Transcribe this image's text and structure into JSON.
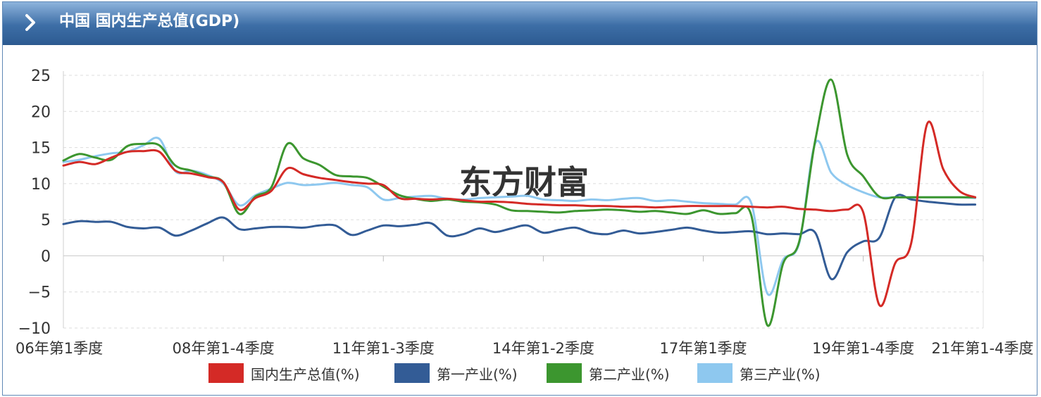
{
  "header": {
    "title": "中国 国内生产总值(GDP)",
    "icon": "chevron-right-icon"
  },
  "chart_data": {
    "type": "line",
    "title": "",
    "xlabel": "",
    "ylabel": "",
    "ylim": [
      -10,
      25
    ],
    "yticks": [
      25,
      20,
      15,
      10,
      5,
      0,
      -5,
      -10
    ],
    "grid": true,
    "legend_position": "bottom",
    "x_tick_labels": [
      "06年第1季度",
      "08年第1-4季度",
      "11年第1-3季度",
      "14年第1-2季度",
      "17年第1季度",
      "19年第1-4季度",
      "21年第1-4季度"
    ],
    "x_tick_positions": [
      0,
      10,
      20,
      30,
      40,
      50,
      57.5
    ],
    "x": [
      0,
      1,
      2,
      3,
      4,
      5,
      6,
      7,
      8,
      9,
      10,
      11,
      12,
      13,
      14,
      15,
      16,
      17,
      18,
      19,
      20,
      21,
      22,
      23,
      24,
      25,
      26,
      27,
      28,
      29,
      30,
      31,
      32,
      33,
      34,
      35,
      36,
      37,
      38,
      39,
      40,
      41,
      42,
      43,
      44,
      45,
      46,
      47,
      48,
      49,
      50,
      51,
      52,
      53,
      54,
      55,
      56,
      57
    ],
    "series": [
      {
        "name": "国内生产总值(%)",
        "color": "#d42a26",
        "values": [
          12.5,
          13.0,
          12.7,
          13.6,
          14.4,
          14.5,
          14.4,
          11.8,
          11.4,
          10.9,
          10.2,
          6.4,
          8.0,
          9.0,
          12.1,
          11.3,
          10.8,
          10.5,
          10.2,
          10.0,
          9.8,
          8.0,
          7.9,
          7.8,
          7.9,
          7.7,
          7.5,
          7.5,
          7.4,
          7.2,
          7.1,
          7.0,
          7.0,
          6.9,
          6.9,
          6.8,
          6.8,
          6.7,
          6.8,
          6.9,
          6.9,
          6.9,
          6.9,
          6.8,
          6.7,
          6.8,
          6.5,
          6.4,
          6.2,
          6.4,
          6.0,
          -6.8,
          -1.0,
          1.8,
          18.3,
          12.0,
          9.0,
          8.1
        ]
      },
      {
        "name": "第一产业(%)",
        "color": "#335c96",
        "values": [
          4.4,
          4.8,
          4.7,
          4.7,
          4.0,
          3.8,
          3.9,
          2.8,
          3.5,
          4.5,
          5.3,
          3.7,
          3.8,
          4.0,
          4.0,
          3.9,
          4.2,
          4.2,
          2.9,
          3.5,
          4.2,
          4.1,
          4.3,
          4.5,
          2.8,
          3.0,
          3.8,
          3.3,
          3.8,
          4.2,
          3.2,
          3.6,
          3.9,
          3.2,
          3.0,
          3.5,
          3.1,
          3.3,
          3.6,
          3.9,
          3.5,
          3.2,
          3.3,
          3.4,
          3.0,
          3.1,
          3.0,
          3.2,
          -3.2,
          0.5,
          2.0,
          2.5,
          8.1,
          7.8,
          7.5,
          7.3,
          7.1,
          7.1
        ]
      },
      {
        "name": "第二产业(%)",
        "color": "#3c962f",
        "values": [
          13.2,
          14.1,
          13.6,
          13.3,
          15.2,
          15.5,
          15.3,
          12.5,
          11.8,
          11.0,
          10.2,
          5.8,
          8.2,
          9.5,
          15.5,
          13.5,
          12.6,
          11.2,
          11.0,
          10.8,
          9.6,
          8.4,
          7.9,
          7.6,
          7.8,
          7.5,
          7.4,
          7.1,
          6.3,
          6.2,
          6.1,
          6.0,
          6.2,
          6.3,
          6.4,
          6.3,
          6.1,
          6.2,
          6.0,
          5.8,
          6.3,
          5.8,
          5.9,
          5.6,
          -9.6,
          -1.0,
          2.0,
          16.0,
          24.4,
          14.0,
          11.0,
          8.2,
          8.1,
          8.1,
          8.1,
          8.1,
          8.1,
          8.1
        ]
      },
      {
        "name": "第三产业(%)",
        "color": "#8ec8ef",
        "values": [
          13.0,
          13.3,
          13.8,
          14.2,
          14.4,
          15.3,
          16.2,
          11.7,
          11.8,
          11.2,
          10.0,
          7.0,
          8.4,
          9.3,
          10.1,
          9.8,
          9.9,
          10.1,
          9.8,
          9.5,
          7.8,
          8.0,
          8.2,
          8.3,
          7.9,
          7.8,
          8.0,
          8.1,
          8.2,
          8.3,
          7.8,
          7.7,
          7.6,
          7.8,
          7.7,
          7.9,
          8.0,
          7.6,
          7.7,
          7.5,
          7.3,
          7.2,
          7.1,
          7.3,
          -5.2,
          -0.5,
          1.8,
          15.6,
          11.5,
          9.8,
          8.8,
          8.1,
          8.1,
          8.1,
          8.1,
          8.1,
          8.1,
          8.0
        ]
      }
    ]
  },
  "legend": {
    "items": [
      {
        "label": "国内生产总值(%)",
        "color": "#d42a26"
      },
      {
        "label": "第一产业(%)",
        "color": "#335c96"
      },
      {
        "label": "第二产业(%)",
        "color": "#3c962f"
      },
      {
        "label": "第三产业(%)",
        "color": "#8ec8ef"
      }
    ]
  }
}
